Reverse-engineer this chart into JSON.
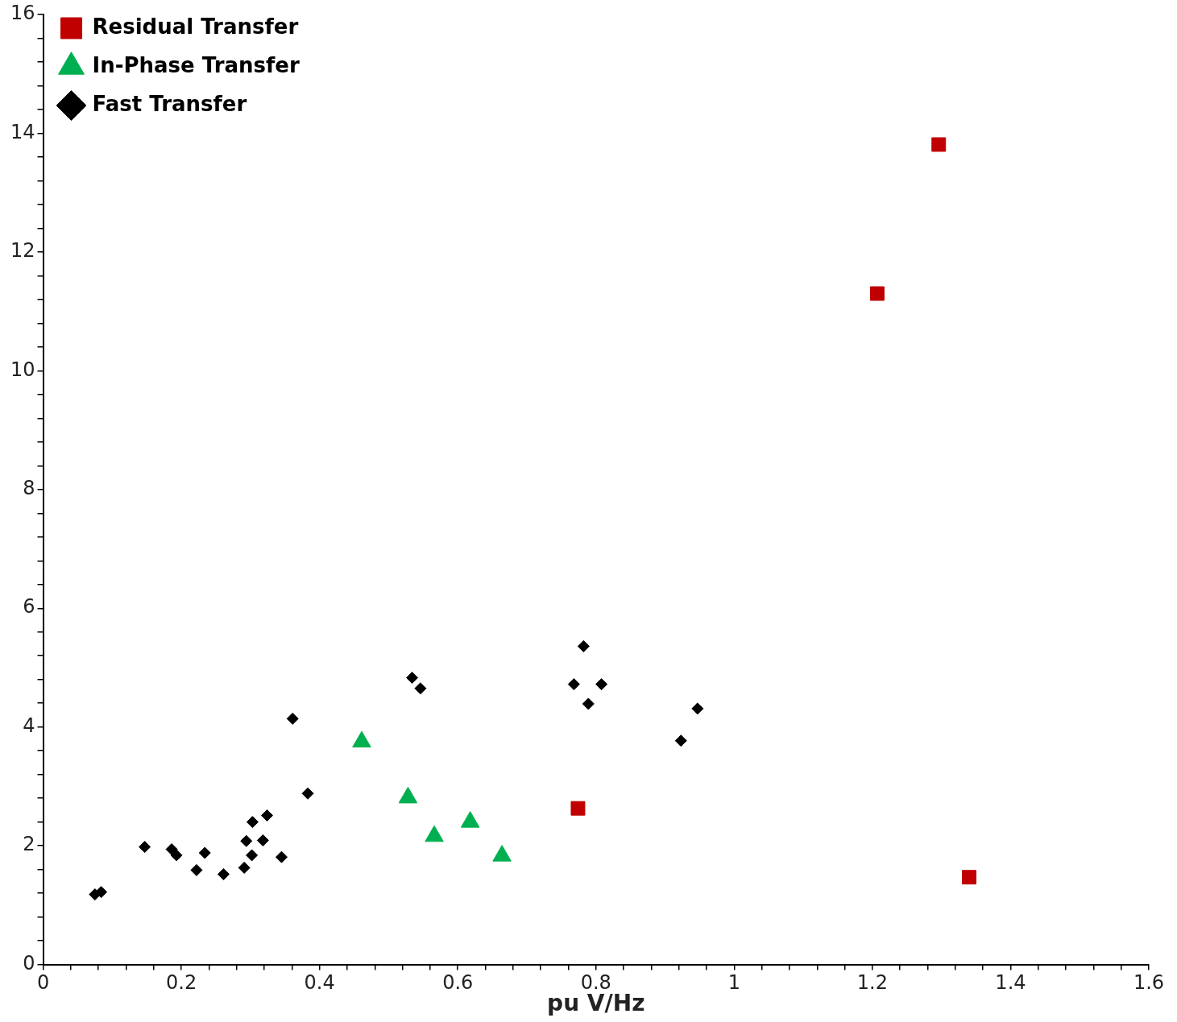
{
  "chart_data": {
    "type": "scatter",
    "xlabel": "pu V/Hz",
    "legend": "top left",
    "grid": false,
    "xlim": [
      0,
      1.6
    ],
    "ylim": [
      0,
      16
    ],
    "xticks": [
      0,
      {
        "value": 0.04,
        "label": null
      },
      {
        "value": 0.08,
        "label": null
      },
      {
        "value": 0.12,
        "label": null
      },
      {
        "value": 0.16,
        "label": null
      },
      0.2,
      {
        "value": 0.24,
        "label": null
      },
      {
        "value": 0.28,
        "label": null
      },
      {
        "value": 0.32,
        "label": null
      },
      {
        "value": 0.36,
        "label": null
      },
      0.4,
      {
        "value": 0.44,
        "label": null
      },
      {
        "value": 0.48,
        "label": null
      },
      {
        "value": 0.52,
        "label": null
      },
      {
        "value": 0.56,
        "label": null
      },
      0.6,
      {
        "value": 0.64,
        "label": null
      },
      {
        "value": 0.68,
        "label": null
      },
      {
        "value": 0.72,
        "label": null
      },
      {
        "value": 0.76,
        "label": null
      },
      0.8,
      {
        "value": 0.84,
        "label": null
      },
      {
        "value": 0.88,
        "label": null
      },
      {
        "value": 0.92,
        "label": null
      },
      {
        "value": 0.96,
        "label": null
      },
      1,
      {
        "value": 1.04,
        "label": null
      },
      {
        "value": 1.08,
        "label": null
      },
      {
        "value": 1.12,
        "label": null
      },
      {
        "value": 1.16,
        "label": null
      },
      1.2,
      {
        "value": 1.24,
        "label": null
      },
      {
        "value": 1.28,
        "label": null
      },
      {
        "value": 1.32,
        "label": null
      },
      {
        "value": 1.36,
        "label": null
      },
      1.4,
      {
        "value": 1.44,
        "label": null
      },
      {
        "value": 1.48,
        "label": null
      },
      {
        "value": 1.52,
        "label": null
      },
      {
        "value": 1.56,
        "label": null
      },
      1.6
    ],
    "yticks": [
      0,
      {
        "value": 0.4,
        "label": null
      },
      {
        "value": 0.8,
        "label": null
      },
      {
        "value": 1.2,
        "label": null
      },
      {
        "value": 1.6,
        "label": null
      },
      2,
      {
        "value": 2.4,
        "label": null
      },
      {
        "value": 2.8,
        "label": null
      },
      {
        "value": 3.2,
        "label": null
      },
      {
        "value": 3.6,
        "label": null
      },
      4,
      {
        "value": 4.4,
        "label": null
      },
      {
        "value": 4.8,
        "label": null
      },
      {
        "value": 5.2,
        "label": null
      },
      {
        "value": 5.6,
        "label": null
      },
      6,
      {
        "value": 6.4,
        "label": null
      },
      {
        "value": 6.8,
        "label": null
      },
      {
        "value": 7.2,
        "label": null
      },
      {
        "value": 7.6,
        "label": null
      },
      8,
      {
        "value": 8.4,
        "label": null
      },
      {
        "value": 8.8,
        "label": null
      },
      {
        "value": 9.2,
        "label": null
      },
      {
        "value": 9.6,
        "label": null
      },
      10,
      {
        "value": 10.4,
        "label": null
      },
      {
        "value": 10.8,
        "label": null
      },
      {
        "value": 11.2,
        "label": null
      },
      {
        "value": 11.6,
        "label": null
      },
      12,
      {
        "value": 12.4,
        "label": null
      },
      {
        "value": 12.8,
        "label": null
      },
      {
        "value": 13.2,
        "label": null
      },
      {
        "value": 13.6,
        "label": null
      },
      14,
      {
        "value": 14.4,
        "label": null
      },
      {
        "value": 14.8,
        "label": null
      },
      {
        "value": 15.2,
        "label": null
      },
      {
        "value": 15.6,
        "label": null
      },
      16
    ],
    "series": [
      {
        "name": "Residual Transfer",
        "color": "#c00000",
        "marker": "square",
        "x": [
          0.774,
          1.207,
          1.296,
          1.34
        ],
        "values": [
          2.63,
          11.3,
          13.81,
          1.47
        ]
      },
      {
        "name": "In-Phase Transfer",
        "color": "#00b050",
        "marker": "triangle",
        "x": [
          0.461,
          0.528,
          0.566,
          0.618,
          0.664
        ],
        "values": [
          3.75,
          2.81,
          2.16,
          2.4,
          1.83
        ]
      },
      {
        "name": "Fast Transfer",
        "color": "#000000",
        "marker": "diamond",
        "x": [
          0.075,
          0.084,
          0.147,
          0.186,
          0.193,
          0.222,
          0.234,
          0.261,
          0.294,
          0.291,
          0.302,
          0.303,
          0.318,
          0.324,
          0.345,
          0.361,
          0.383,
          0.534,
          0.546,
          0.768,
          0.782,
          0.789,
          0.808,
          0.923,
          0.947
        ],
        "values": [
          1.18,
          1.22,
          1.98,
          1.94,
          1.84,
          1.59,
          1.88,
          1.52,
          2.08,
          1.63,
          1.84,
          2.4,
          2.09,
          2.51,
          1.81,
          4.14,
          2.88,
          4.83,
          4.65,
          4.72,
          5.36,
          4.39,
          4.72,
          3.77,
          4.31
        ]
      }
    ]
  }
}
